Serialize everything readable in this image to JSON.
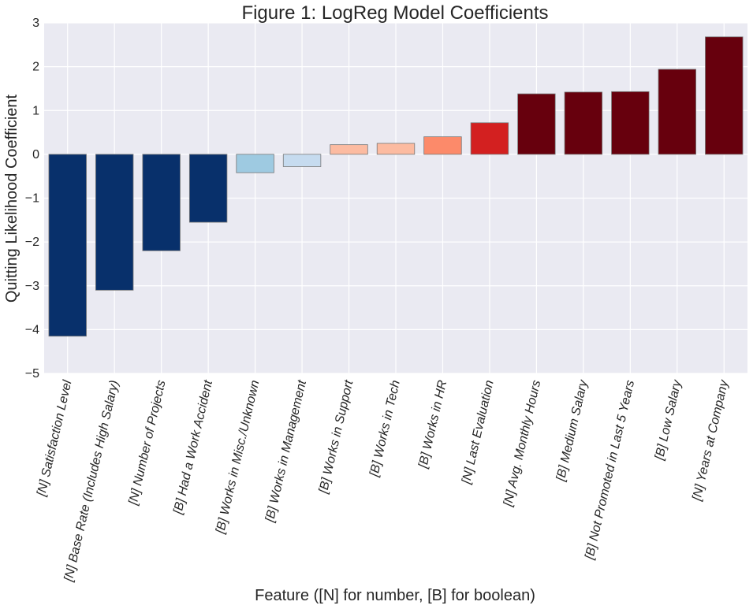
{
  "chart_data": {
    "type": "bar",
    "title": "Figure 1: LogReg Model Coefficients",
    "xlabel": "Feature ([N] for number, [B] for boolean)",
    "ylabel": "Quitting Likelihood Coefficient",
    "ylim": [
      -5,
      3
    ],
    "yticks": [
      "−5",
      "−4",
      "−3",
      "−2",
      "−1",
      "0",
      "1",
      "2",
      "3"
    ],
    "grid": true,
    "categories": [
      "[N] Satisfaction Level",
      "[N] Base Rate (Includes High Salary)",
      "[N] Number of Projects",
      "[B] Had a Work Accident",
      "[B] Works in Misc./Unknown",
      "[B] Works in Management",
      "[B] Works in Support",
      "[B] Works in Tech",
      "[B] Works in HR",
      "[N] Last Evaluation",
      "[N] Avg. Monthly Hours",
      "[B] Medium Salary",
      "[B] Not Promoted in Last 5 Years",
      "[B] Low Salary",
      "[N] Years at Company"
    ],
    "values": [
      -4.15,
      -3.1,
      -2.2,
      -1.55,
      -0.42,
      -0.28,
      0.22,
      0.25,
      0.4,
      0.72,
      1.38,
      1.42,
      1.43,
      1.94,
      2.68
    ],
    "colors": [
      "#08306b",
      "#08306b",
      "#08306b",
      "#08306b",
      "#9ecae1",
      "#c6dbef",
      "#fcbba1",
      "#fcbba1",
      "#fc8a6a",
      "#d32020",
      "#67000d",
      "#67000d",
      "#67000d",
      "#67000d",
      "#67000d"
    ],
    "plot_background": "#eaeaf2",
    "grid_color": "#ffffff"
  }
}
